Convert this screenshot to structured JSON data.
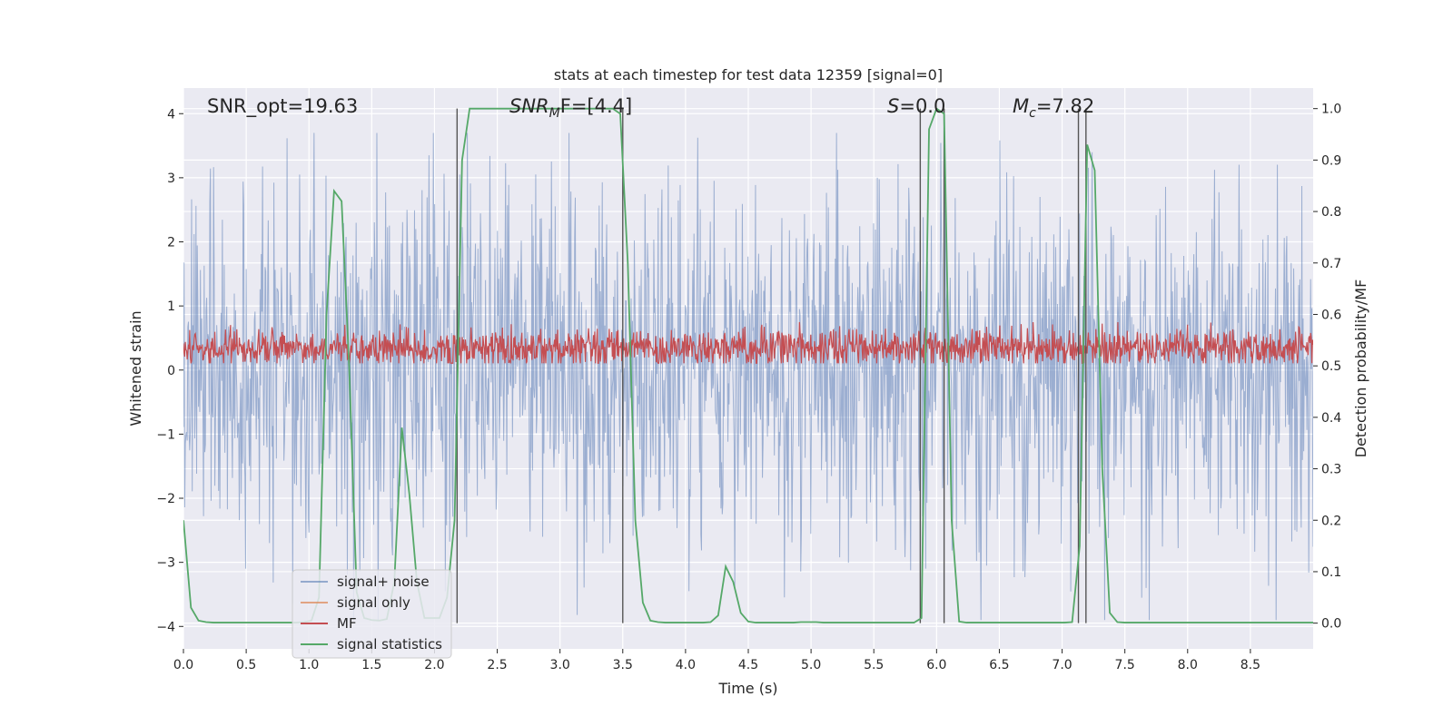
{
  "chart_data": {
    "type": "line",
    "title": "stats at each timestep for test data 12359 [signal=0]",
    "xlabel": "Time (s)",
    "ylabel_left": "Whitened strain",
    "ylabel_right": "Detection probability/MF",
    "xlim": [
      0,
      9.0
    ],
    "ylim_left": [
      -4.35,
      4.4
    ],
    "ylim_right": [
      -0.05,
      1.04
    ],
    "x_ticks": [
      0.0,
      0.5,
      1.0,
      1.5,
      2.0,
      2.5,
      3.0,
      3.5,
      4.0,
      4.5,
      5.0,
      5.5,
      6.0,
      6.5,
      7.0,
      7.5,
      8.0,
      8.5
    ],
    "x_tick_labels": [
      "0.0",
      "0.5",
      "1.0",
      "1.5",
      "2.0",
      "2.5",
      "3.0",
      "3.5",
      "4.0",
      "4.5",
      "5.0",
      "5.5",
      "6.0",
      "6.5",
      "7.0",
      "7.5",
      "8.0",
      "8.5"
    ],
    "y_left_ticks": [
      -4,
      -3,
      -2,
      -1,
      0,
      1,
      2,
      3,
      4
    ],
    "y_left_tick_labels": [
      "−4",
      "−3",
      "−2",
      "−1",
      "0",
      "1",
      "2",
      "3",
      "4"
    ],
    "y_right_ticks": [
      0.0,
      0.1,
      0.2,
      0.3,
      0.4,
      0.5,
      0.6,
      0.7,
      0.8,
      0.9,
      1.0
    ],
    "y_right_tick_labels": [
      "0.0",
      "0.1",
      "0.2",
      "0.3",
      "0.4",
      "0.5",
      "0.6",
      "0.7",
      "0.8",
      "0.9",
      "1.0"
    ],
    "annotations": {
      "snr_opt": "SNR_opt=19.63",
      "snr_mf_base": "SNR",
      "snr_mf_sub": "M",
      "snr_mf_rest": "F=[4.4]",
      "s_base": "S",
      "s_rest": "=0.0",
      "mc_base": "M",
      "mc_sub": "c",
      "mc_rest": "=7.82"
    },
    "legend": {
      "placement": "lower-left",
      "entries": [
        "signal+ noise",
        "signal only",
        "MF",
        "signal statistics"
      ]
    },
    "colors": {
      "background": "#eaeaf2",
      "grid": "#ffffff",
      "noise": "#4c72b0",
      "signal_only": "#dd8452",
      "mf": "#c44e52",
      "stats": "#55a868",
      "vlines": "#555555"
    },
    "vlines_x": [
      2.18,
      3.5,
      5.87,
      6.06,
      7.13,
      7.19
    ],
    "vlines_ylim_right": [
      0.0,
      1.0
    ],
    "series": [
      {
        "name": "signal statistics",
        "axis": "right",
        "x": [
          0.0,
          0.06,
          0.12,
          0.18,
          0.24,
          0.3,
          0.36,
          0.42,
          0.48,
          0.54,
          0.6,
          0.66,
          0.72,
          0.78,
          0.84,
          0.9,
          0.96,
          1.02,
          1.08,
          1.14,
          1.2,
          1.26,
          1.32,
          1.38,
          1.44,
          1.5,
          1.56,
          1.62,
          1.68,
          1.74,
          1.8,
          1.86,
          1.92,
          1.98,
          2.04,
          2.1,
          2.16,
          2.22,
          2.28,
          2.34,
          2.4,
          2.46,
          2.52,
          2.58,
          2.64,
          2.7,
          2.76,
          2.82,
          2.88,
          2.94,
          3.0,
          3.06,
          3.12,
          3.18,
          3.24,
          3.3,
          3.36,
          3.42,
          3.48,
          3.54,
          3.6,
          3.66,
          3.72,
          3.78,
          3.84,
          3.9,
          3.96,
          4.02,
          4.08,
          4.14,
          4.2,
          4.26,
          4.32,
          4.38,
          4.44,
          4.5,
          4.56,
          4.62,
          4.68,
          4.74,
          4.8,
          4.86,
          4.92,
          4.98,
          5.04,
          5.1,
          5.16,
          5.22,
          5.28,
          5.34,
          5.4,
          5.46,
          5.52,
          5.58,
          5.64,
          5.7,
          5.76,
          5.82,
          5.88,
          5.94,
          6.0,
          6.06,
          6.12,
          6.18,
          6.24,
          6.3,
          6.36,
          6.42,
          6.48,
          6.54,
          6.6,
          6.66,
          6.72,
          6.78,
          6.84,
          6.9,
          6.96,
          7.02,
          7.08,
          7.14,
          7.2,
          7.26,
          7.32,
          7.38,
          7.44,
          7.5,
          7.56,
          7.62,
          7.68,
          7.74,
          7.8,
          7.86,
          7.92,
          7.98,
          8.04,
          8.1,
          8.16,
          8.22,
          8.28,
          8.34,
          8.4,
          8.46,
          8.52,
          8.58,
          8.64,
          8.7,
          8.76,
          8.82,
          8.88,
          8.94,
          9.0
        ],
        "values": [
          0.2,
          0.03,
          0.005,
          0.002,
          0.001,
          0.001,
          0.001,
          0.001,
          0.001,
          0.001,
          0.001,
          0.001,
          0.001,
          0.001,
          0.001,
          0.001,
          0.002,
          0.005,
          0.05,
          0.6,
          0.84,
          0.82,
          0.5,
          0.06,
          0.01,
          0.006,
          0.005,
          0.008,
          0.08,
          0.38,
          0.25,
          0.08,
          0.01,
          0.01,
          0.01,
          0.05,
          0.2,
          0.9,
          1.0,
          1.0,
          1.0,
          1.0,
          1.0,
          1.0,
          1.0,
          1.0,
          1.0,
          1.0,
          1.0,
          1.0,
          1.0,
          1.0,
          1.0,
          1.0,
          1.0,
          1.0,
          1.0,
          1.0,
          0.99,
          0.7,
          0.2,
          0.04,
          0.005,
          0.002,
          0.001,
          0.001,
          0.001,
          0.001,
          0.001,
          0.001,
          0.002,
          0.015,
          0.11,
          0.08,
          0.02,
          0.003,
          0.001,
          0.001,
          0.001,
          0.001,
          0.001,
          0.001,
          0.002,
          0.002,
          0.002,
          0.001,
          0.001,
          0.001,
          0.001,
          0.001,
          0.001,
          0.001,
          0.001,
          0.001,
          0.001,
          0.001,
          0.001,
          0.001,
          0.01,
          0.96,
          1.0,
          0.99,
          0.2,
          0.003,
          0.001,
          0.001,
          0.001,
          0.001,
          0.001,
          0.001,
          0.001,
          0.001,
          0.001,
          0.001,
          0.001,
          0.001,
          0.001,
          0.001,
          0.002,
          0.15,
          0.93,
          0.88,
          0.3,
          0.02,
          0.002,
          0.001,
          0.001,
          0.001,
          0.001,
          0.001,
          0.001,
          0.001,
          0.001,
          0.001,
          0.001,
          0.001,
          0.001,
          0.001,
          0.001,
          0.001,
          0.001,
          0.001,
          0.001,
          0.001,
          0.001,
          0.001,
          0.001,
          0.001,
          0.001,
          0.001,
          0.001
        ]
      }
    ],
    "noise_series": {
      "name": "signal+ noise",
      "axis": "left",
      "description_range": [
        -3.9,
        3.7
      ],
      "n_samples": 1800,
      "seed": 12359
    },
    "mf_series": {
      "name": "MF",
      "axis": "right",
      "center": 0.535,
      "range": [
        0.505,
        0.585
      ],
      "n_samples": 1800,
      "seed": 4242
    }
  }
}
